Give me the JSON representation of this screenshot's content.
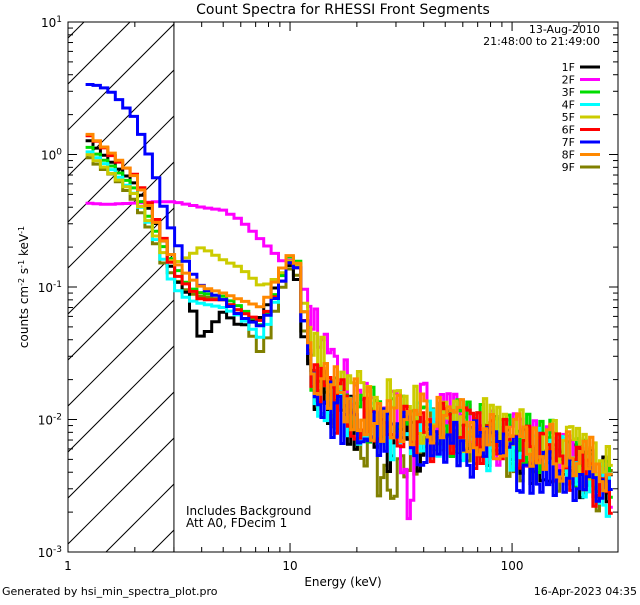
{
  "chart_data": {
    "type": "line",
    "title": "Count Spectra for RHESSI Front Segments",
    "xlabel": "Energy (keV)",
    "ylabel": "counts cm-2 s-1 keV-1",
    "xscale": "log",
    "yscale": "log",
    "xlim": [
      1,
      300
    ],
    "ylim": [
      0.001,
      10
    ],
    "x_ticks": [
      {
        "value": 1,
        "label": "1"
      },
      {
        "value": 10,
        "label": "10"
      },
      {
        "value": 100,
        "label": "100"
      }
    ],
    "y_ticks": [
      {
        "value": 10,
        "base": "10",
        "exp": "1"
      },
      {
        "value": 1,
        "base": "10",
        "exp": "0"
      },
      {
        "value": 0.1,
        "base": "10",
        "exp": "-1"
      },
      {
        "value": 0.01,
        "base": "10",
        "exp": "-2"
      },
      {
        "value": 0.001,
        "base": "10",
        "exp": "-3"
      }
    ],
    "date": "13-Aug-2010",
    "time_range": "21:48:00 to 21:49:00",
    "excluded_region_max_kev": 3,
    "annotations": [
      "Includes Background",
      "Att A0, FDecim 1"
    ],
    "footer_left": "Generated by hsi_min_spectra_plot.pro",
    "footer_right": "16-Apr-2023 04:35",
    "series": [
      {
        "name": "1F",
        "color": "#000000",
        "values": [
          [
            1.2,
            1.35
          ],
          [
            1.4,
            1.05
          ],
          [
            1.6,
            0.85
          ],
          [
            2.0,
            0.6
          ],
          [
            2.4,
            0.35
          ],
          [
            2.7,
            0.22
          ],
          [
            3.0,
            0.12
          ],
          [
            3.5,
            0.085
          ],
          [
            4.0,
            0.04
          ],
          [
            5.0,
            0.065
          ],
          [
            6.0,
            0.05
          ],
          [
            7.5,
            0.06
          ],
          [
            9.0,
            0.12
          ],
          [
            10.5,
            0.16
          ],
          [
            11.5,
            0.045
          ],
          [
            13,
            0.015
          ],
          [
            16,
            0.012
          ],
          [
            20,
            0.009
          ],
          [
            25,
            0.008
          ],
          [
            30,
            0.006
          ],
          [
            40,
            0.007
          ],
          [
            50,
            0.008
          ],
          [
            70,
            0.007
          ],
          [
            100,
            0.006
          ],
          [
            150,
            0.005
          ],
          [
            200,
            0.004
          ],
          [
            280,
            0.003
          ]
        ]
      },
      {
        "name": "2F",
        "color": "#ff00ff",
        "values": [
          [
            1.2,
            0.43
          ],
          [
            1.5,
            0.42
          ],
          [
            2.0,
            0.43
          ],
          [
            2.5,
            0.44
          ],
          [
            3.0,
            0.44
          ],
          [
            4.0,
            0.4
          ],
          [
            5.0,
            0.38
          ],
          [
            6.0,
            0.32
          ],
          [
            7.0,
            0.25
          ],
          [
            8.0,
            0.2
          ],
          [
            9.5,
            0.15
          ],
          [
            10.5,
            0.17
          ],
          [
            11.5,
            0.1
          ],
          [
            13,
            0.05
          ],
          [
            16,
            0.025
          ],
          [
            20,
            0.018
          ],
          [
            25,
            0.012
          ],
          [
            30,
            0.01
          ],
          [
            34,
            0.002
          ],
          [
            38,
            0.012
          ],
          [
            50,
            0.01
          ],
          [
            70,
            0.008
          ],
          [
            100,
            0.007
          ],
          [
            150,
            0.006
          ],
          [
            200,
            0.005
          ],
          [
            280,
            0.003
          ]
        ]
      },
      {
        "name": "3F",
        "color": "#00dd00",
        "values": [
          [
            1.2,
            1.2
          ],
          [
            1.4,
            0.95
          ],
          [
            1.6,
            0.8
          ],
          [
            2.0,
            0.55
          ],
          [
            2.4,
            0.3
          ],
          [
            2.7,
            0.2
          ],
          [
            3.0,
            0.15
          ],
          [
            3.5,
            0.1
          ],
          [
            4.0,
            0.09
          ],
          [
            5.0,
            0.085
          ],
          [
            6.0,
            0.07
          ],
          [
            7.5,
            0.05
          ],
          [
            9.0,
            0.11
          ],
          [
            10.5,
            0.21
          ],
          [
            11.5,
            0.07
          ],
          [
            13,
            0.02
          ],
          [
            16,
            0.015
          ],
          [
            20,
            0.012
          ],
          [
            25,
            0.01
          ],
          [
            30,
            0.009
          ],
          [
            40,
            0.01
          ],
          [
            50,
            0.009
          ],
          [
            70,
            0.008
          ],
          [
            100,
            0.007
          ],
          [
            150,
            0.006
          ],
          [
            200,
            0.005
          ],
          [
            280,
            0.004
          ]
        ]
      },
      {
        "name": "4F",
        "color": "#00ffff",
        "values": [
          [
            1.2,
            1.1
          ],
          [
            1.4,
            0.9
          ],
          [
            1.6,
            0.75
          ],
          [
            2.0,
            0.5
          ],
          [
            2.4,
            0.27
          ],
          [
            2.7,
            0.16
          ],
          [
            3.0,
            0.1
          ],
          [
            3.5,
            0.08
          ],
          [
            4.0,
            0.075
          ],
          [
            5.0,
            0.07
          ],
          [
            6.0,
            0.06
          ],
          [
            7.5,
            0.04
          ],
          [
            9.0,
            0.1
          ],
          [
            10.5,
            0.19
          ],
          [
            11.5,
            0.06
          ],
          [
            13,
            0.017
          ],
          [
            16,
            0.013
          ],
          [
            20,
            0.011
          ],
          [
            25,
            0.009
          ],
          [
            30,
            0.008
          ],
          [
            40,
            0.009
          ],
          [
            50,
            0.008
          ],
          [
            70,
            0.007
          ],
          [
            100,
            0.006
          ],
          [
            150,
            0.005
          ],
          [
            200,
            0.004
          ],
          [
            280,
            0.003
          ]
        ]
      },
      {
        "name": "5F",
        "color": "#cccc00",
        "values": [
          [
            1.2,
            1.05
          ],
          [
            1.4,
            0.85
          ],
          [
            1.6,
            0.7
          ],
          [
            2.0,
            0.5
          ],
          [
            2.4,
            0.28
          ],
          [
            2.7,
            0.18
          ],
          [
            3.0,
            0.15
          ],
          [
            3.5,
            0.17
          ],
          [
            4.0,
            0.2
          ],
          [
            5.0,
            0.16
          ],
          [
            6.0,
            0.14
          ],
          [
            7.5,
            0.1
          ],
          [
            9.0,
            0.12
          ],
          [
            10.5,
            0.18
          ],
          [
            11.5,
            0.08
          ],
          [
            13,
            0.03
          ],
          [
            16,
            0.02
          ],
          [
            20,
            0.015
          ],
          [
            25,
            0.013
          ],
          [
            30,
            0.012
          ],
          [
            40,
            0.011
          ],
          [
            50,
            0.01
          ],
          [
            70,
            0.009
          ],
          [
            100,
            0.008
          ],
          [
            150,
            0.007
          ],
          [
            200,
            0.006
          ],
          [
            280,
            0.004
          ]
        ]
      },
      {
        "name": "6F",
        "color": "#ff0000",
        "values": [
          [
            1.2,
            1.45
          ],
          [
            1.4,
            1.2
          ],
          [
            1.6,
            0.95
          ],
          [
            2.0,
            0.7
          ],
          [
            2.4,
            0.38
          ],
          [
            2.7,
            0.23
          ],
          [
            3.0,
            0.13
          ],
          [
            3.5,
            0.1
          ],
          [
            4.0,
            0.08
          ],
          [
            5.0,
            0.08
          ],
          [
            6.0,
            0.065
          ],
          [
            7.5,
            0.055
          ],
          [
            9.0,
            0.1
          ],
          [
            10.5,
            0.19
          ],
          [
            11.5,
            0.06
          ],
          [
            13,
            0.018
          ],
          [
            16,
            0.013
          ],
          [
            20,
            0.01
          ],
          [
            25,
            0.009
          ],
          [
            30,
            0.008
          ],
          [
            40,
            0.008
          ],
          [
            50,
            0.008
          ],
          [
            70,
            0.007
          ],
          [
            100,
            0.006
          ],
          [
            150,
            0.005
          ],
          [
            200,
            0.004
          ],
          [
            280,
            0.003
          ]
        ]
      },
      {
        "name": "7F",
        "color": "#0000ff",
        "values": [
          [
            1.2,
            3.4
          ],
          [
            1.4,
            3.3
          ],
          [
            1.6,
            2.9
          ],
          [
            2.0,
            1.9
          ],
          [
            2.4,
            0.85
          ],
          [
            2.7,
            0.4
          ],
          [
            3.0,
            0.24
          ],
          [
            3.5,
            0.14
          ],
          [
            4.0,
            0.1
          ],
          [
            5.0,
            0.08
          ],
          [
            6.0,
            0.06
          ],
          [
            7.5,
            0.05
          ],
          [
            9.0,
            0.1
          ],
          [
            10.5,
            0.19
          ],
          [
            11.5,
            0.06
          ],
          [
            13,
            0.016
          ],
          [
            16,
            0.011
          ],
          [
            20,
            0.008
          ],
          [
            25,
            0.008
          ],
          [
            30,
            0.007
          ],
          [
            40,
            0.007
          ],
          [
            50,
            0.006
          ],
          [
            70,
            0.006
          ],
          [
            100,
            0.005
          ],
          [
            150,
            0.004
          ],
          [
            200,
            0.004
          ],
          [
            280,
            0.003
          ]
        ]
      },
      {
        "name": "8F",
        "color": "#ff8800",
        "values": [
          [
            1.2,
            1.5
          ],
          [
            1.4,
            1.2
          ],
          [
            1.6,
            1.0
          ],
          [
            2.0,
            0.68
          ],
          [
            2.4,
            0.36
          ],
          [
            2.7,
            0.22
          ],
          [
            3.0,
            0.16
          ],
          [
            3.5,
            0.12
          ],
          [
            4.0,
            0.1
          ],
          [
            5.0,
            0.09
          ],
          [
            6.0,
            0.08
          ],
          [
            7.5,
            0.07
          ],
          [
            9.0,
            0.13
          ],
          [
            10.5,
            0.2
          ],
          [
            11.5,
            0.07
          ],
          [
            13,
            0.02
          ],
          [
            16,
            0.016
          ],
          [
            20,
            0.013
          ],
          [
            25,
            0.011
          ],
          [
            30,
            0.01
          ],
          [
            40,
            0.011
          ],
          [
            50,
            0.01
          ],
          [
            70,
            0.009
          ],
          [
            100,
            0.008
          ],
          [
            150,
            0.006
          ],
          [
            200,
            0.005
          ],
          [
            280,
            0.004
          ]
        ]
      },
      {
        "name": "9F",
        "color": "#808000",
        "values": [
          [
            1.2,
            1.0
          ],
          [
            1.4,
            0.8
          ],
          [
            1.6,
            0.7
          ],
          [
            2.0,
            0.45
          ],
          [
            2.4,
            0.25
          ],
          [
            2.7,
            0.15
          ],
          [
            3.0,
            0.12
          ],
          [
            3.5,
            0.09
          ],
          [
            4.0,
            0.085
          ],
          [
            5.0,
            0.08
          ],
          [
            6.0,
            0.065
          ],
          [
            7.5,
            0.03
          ],
          [
            9.0,
            0.09
          ],
          [
            10.5,
            0.17
          ],
          [
            11.5,
            0.05
          ],
          [
            13,
            0.015
          ],
          [
            16,
            0.012
          ],
          [
            20,
            0.008
          ],
          [
            25,
            0.004
          ],
          [
            30,
            0.003
          ],
          [
            40,
            0.007
          ],
          [
            50,
            0.008
          ],
          [
            70,
            0.007
          ],
          [
            100,
            0.006
          ],
          [
            150,
            0.005
          ],
          [
            200,
            0.004
          ],
          [
            280,
            0.003
          ]
        ]
      }
    ]
  }
}
